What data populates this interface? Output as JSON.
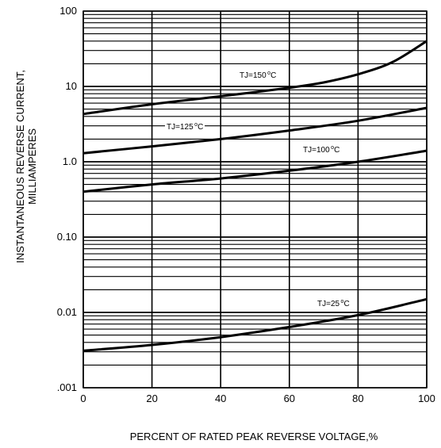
{
  "chart_data": {
    "type": "line",
    "title": "",
    "xlabel": "PERCENT OF RATED PEAK REVERSE VOLTAGE,%",
    "ylabel": "INSTANTANEOUS REVERSE CURRENT,",
    "ylabel_line2": "MILLIAMPERES",
    "xlim": [
      0,
      100
    ],
    "ylim": [
      0.001,
      100
    ],
    "yscale": "log",
    "grid": true,
    "x_ticks": [
      0,
      20,
      40,
      60,
      80,
      100
    ],
    "x_tick_labels": [
      "0",
      "20",
      "40",
      "60",
      "80",
      "100"
    ],
    "y_ticks": [
      0.001,
      0.01,
      0.1,
      1,
      10,
      100
    ],
    "y_tick_labels": [
      ".001",
      "0.01",
      "0.10",
      "1.0",
      "10",
      "100"
    ],
    "series": [
      {
        "name": "TJ=150°C",
        "label_parts": [
          "TJ=150",
          "o",
          "C"
        ],
        "x": [
          0,
          20,
          40,
          60,
          70,
          80,
          90,
          100
        ],
        "y": [
          4.3,
          5.8,
          7.4,
          9.6,
          11.3,
          14.5,
          21,
          40
        ]
      },
      {
        "name": "TJ=125°C",
        "label_parts": [
          "TJ=125",
          "o",
          "C"
        ],
        "x": [
          0,
          20,
          40,
          60,
          80,
          100
        ],
        "y": [
          1.3,
          1.6,
          2.0,
          2.6,
          3.5,
          5.2
        ]
      },
      {
        "name": "TJ=100°C",
        "label_parts": [
          "TJ=100",
          "o",
          "C"
        ],
        "x": [
          0,
          20,
          40,
          60,
          80,
          100
        ],
        "y": [
          0.4,
          0.5,
          0.6,
          0.76,
          1.0,
          1.4
        ]
      },
      {
        "name": "TJ=25°C",
        "label_parts": [
          "TJ=25",
          "o",
          "C"
        ],
        "x": [
          0,
          20,
          40,
          60,
          80,
          100
        ],
        "y": [
          0.0031,
          0.0037,
          0.0047,
          0.0064,
          0.0092,
          0.015
        ]
      }
    ]
  }
}
